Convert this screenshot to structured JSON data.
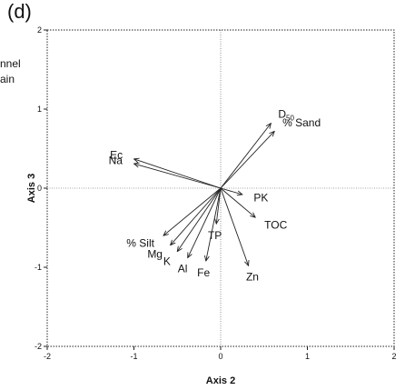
{
  "panel": {
    "label": "(d)",
    "legend_fragment": [
      "nnel",
      "ain"
    ]
  },
  "chart_data": {
    "type": "biplot",
    "xlabel": "Axis 2",
    "ylabel": "Axis 3",
    "xlim": [
      -2,
      2
    ],
    "ylim": [
      -2,
      2
    ],
    "xticks": [
      "-2",
      "-1",
      "0",
      "1",
      "2"
    ],
    "yticks": [
      "-2",
      "-1",
      "0",
      "1",
      "2"
    ],
    "grid": false,
    "vectors": [
      {
        "name": "D",
        "subscript": "50",
        "x": 0.58,
        "y": 0.82
      },
      {
        "name": "% Sand",
        "x": 0.62,
        "y": 0.72
      },
      {
        "name": "Ec",
        "x": -1.0,
        "y": 0.37
      },
      {
        "name": "Na",
        "x": -1.0,
        "y": 0.31
      },
      {
        "name": "PK",
        "x": 0.25,
        "y": -0.08
      },
      {
        "name": "TOC",
        "x": 0.4,
        "y": -0.37
      },
      {
        "name": "TP",
        "x": -0.05,
        "y": -0.45
      },
      {
        "name": "% Silt",
        "x": -0.66,
        "y": -0.6
      },
      {
        "name": "Mg",
        "x": -0.58,
        "y": -0.72
      },
      {
        "name": "K",
        "x": -0.5,
        "y": -0.8
      },
      {
        "name": "Al",
        "x": -0.38,
        "y": -0.88
      },
      {
        "name": "Fe",
        "x": -0.17,
        "y": -0.92
      },
      {
        "name": "Zn",
        "x": 0.32,
        "y": -0.98
      }
    ]
  }
}
